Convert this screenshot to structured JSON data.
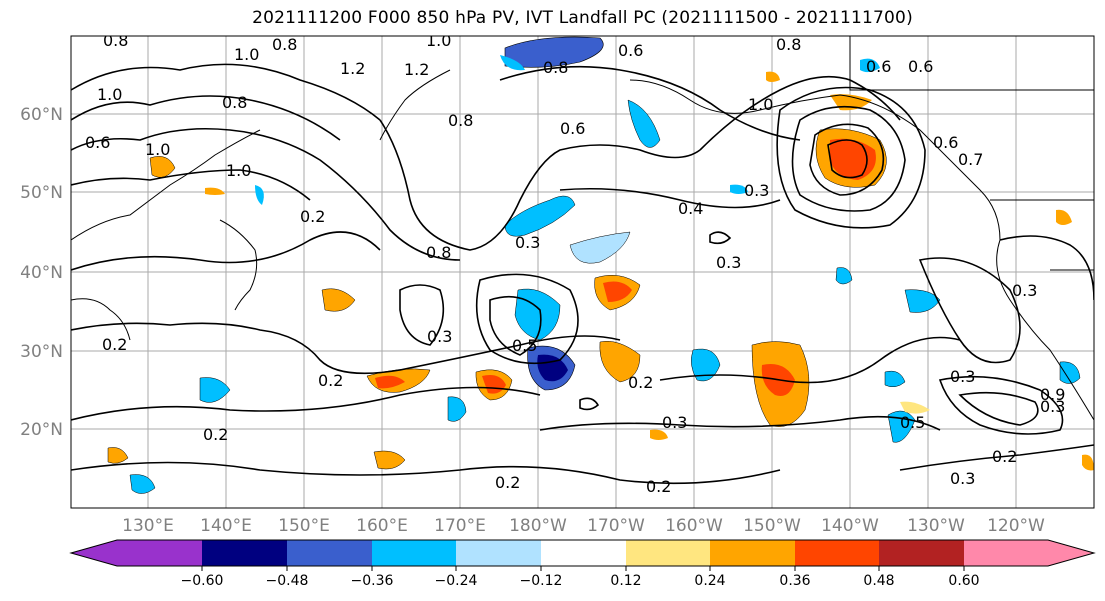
{
  "title": "2021111200 F000 850 hPa PV, IVT Landfall PC (2021111500 - 2021111700)",
  "lon_ticks": [
    "130°E",
    "140°E",
    "150°E",
    "160°E",
    "170°E",
    "180°W",
    "170°W",
    "160°W",
    "150°W",
    "140°W",
    "130°W",
    "120°W"
  ],
  "lat_ticks": [
    "60°N",
    "50°N",
    "40°N",
    "30°N",
    "20°N"
  ],
  "colorbar": {
    "ticks": [
      "−0.60",
      "−0.48",
      "−0.36",
      "−0.24",
      "−0.12",
      "0.12",
      "0.24",
      "0.36",
      "0.48",
      "0.60"
    ],
    "colors": [
      "#9932cc",
      "#000080",
      "#3a5fcd",
      "#00bfff",
      "#b0e2ff",
      "#ffffff",
      "#ffe680",
      "#ffa500",
      "#ff4500",
      "#b22222",
      "#ff88aa"
    ]
  },
  "contour_labels": [
    "0.8",
    "1.0",
    "0.8",
    "1.2",
    "1.0",
    "0.8",
    "0.6",
    "1.0",
    "1.2",
    "0.8",
    "0.6",
    "1.0",
    "0.8",
    "0.6",
    "1.0",
    "0.6",
    "0.8",
    "1.0",
    "0.2",
    "0.2",
    "0.8",
    "0.3",
    "0.4",
    "0.3",
    "0.3",
    "0.3",
    "0.5",
    "0.2",
    "0.2",
    "0.3",
    "0.2",
    "0.2",
    "0.2",
    "0.3",
    "0.5",
    "0.3",
    "0.2",
    "0.3",
    "0.3",
    "0.6",
    "0.7",
    "0.6",
    "0.9"
  ]
}
